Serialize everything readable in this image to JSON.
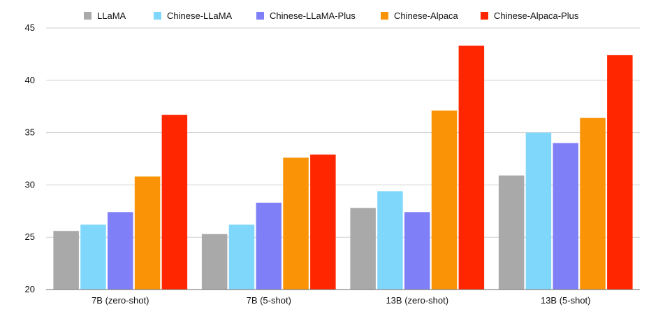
{
  "chart_data": {
    "type": "bar",
    "title": "",
    "xlabel": "",
    "ylabel": "",
    "categories": [
      "7B (zero-shot)",
      "7B (5-shot)",
      "13B (zero-shot)",
      "13B (5-shot)"
    ],
    "series": [
      {
        "name": "LLaMA",
        "color": "#a9a9a9",
        "values": [
          25.6,
          25.3,
          27.8,
          30.9
        ]
      },
      {
        "name": "Chinese-LLaMA",
        "color": "#7fd8fc",
        "values": [
          26.2,
          26.2,
          29.4,
          35.0
        ]
      },
      {
        "name": "Chinese-LLaMA-Plus",
        "color": "#7f7ff7",
        "values": [
          27.4,
          28.3,
          27.4,
          34.0
        ]
      },
      {
        "name": "Chinese-Alpaca",
        "color": "#fa9305",
        "values": [
          30.8,
          32.6,
          37.1,
          36.4
        ]
      },
      {
        "name": "Chinese-Alpaca-Plus",
        "color": "#ff2600",
        "values": [
          36.7,
          32.9,
          43.3,
          42.4
        ]
      }
    ],
    "ylim": [
      20,
      45
    ],
    "yticks": [
      20,
      25,
      30,
      35,
      40,
      45
    ],
    "grid": true,
    "legend_position": "top"
  }
}
